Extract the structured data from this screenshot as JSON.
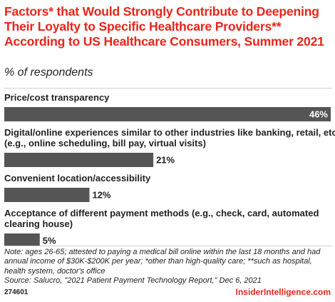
{
  "chart_data": {
    "type": "bar",
    "orientation": "horizontal",
    "title": "Factors* that Would Strongly Contribute to Deepening Their Loyalty to Specific Healthcare Providers** According to US Healthcare Consumers, Summer 2021",
    "subtitle": "% of respondents",
    "categories": [
      [
        "Price/cost transparency"
      ],
      [
        "Digital/online experiences similar to other industries like banking, retail, etc.",
        "(e.g., online scheduling, bill pay, virtual visits)"
      ],
      [
        "Convenient location/accessibility"
      ],
      [
        "Acceptance of different payment methods (e.g., check, card, automated",
        "clearing house)"
      ]
    ],
    "values": [
      46,
      21,
      12,
      5
    ],
    "value_labels": [
      "46%",
      "21%",
      "12%",
      "5%"
    ],
    "xlim": [
      0,
      46
    ],
    "bar_color": "#555555",
    "label_color_inside": "#ffffff",
    "label_color_outside": "#222222"
  },
  "footer": {
    "note": "Note: ages 26-65; attested to paying a medical bill online within the last 18 months and had annual income of $30K-$200K per year; *other than high-quality care; **such as hospital, health system, doctor's office",
    "source": "Source: Salucro, \"2021 Patient Payment Technology Report,\" Dec 6, 2021",
    "chart_id": "274601",
    "brand": "InsiderIntelligence.com"
  },
  "colors": {
    "title": "#e8251b",
    "brand": "#e8251b"
  }
}
